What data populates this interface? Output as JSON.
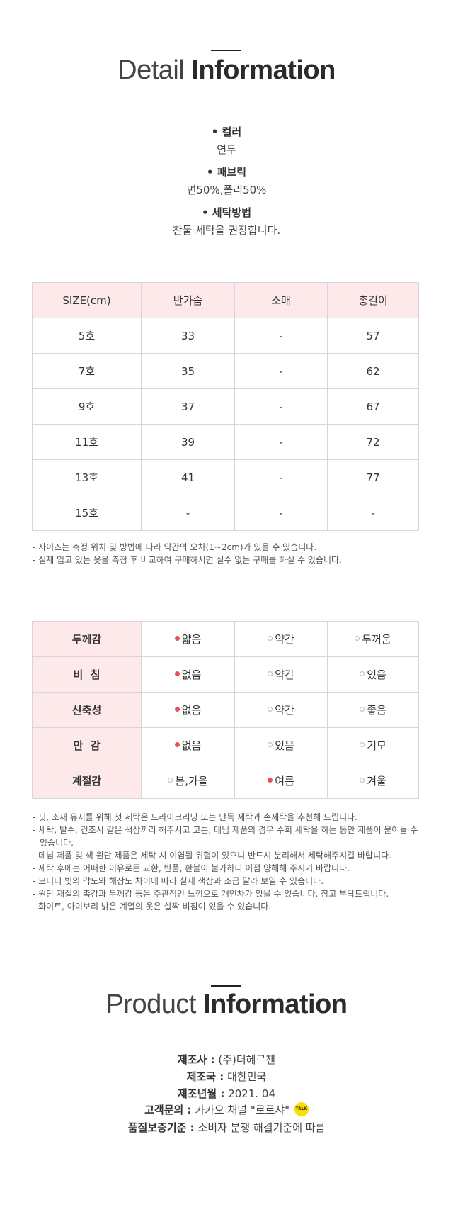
{
  "detail": {
    "title_light": "Detail",
    "title_bold": "Information",
    "items": [
      {
        "label": "• 컬러",
        "value": "연두"
      },
      {
        "label": "• 패브릭",
        "value": "면50%,폴리50%"
      },
      {
        "label": "• 세탁방법",
        "value": "찬물 세탁을 권장합니다."
      }
    ]
  },
  "size_table": {
    "headers": [
      "SIZE(cm)",
      "반가슴",
      "소매",
      "총길이"
    ],
    "rows": [
      [
        "5호",
        "33",
        "-",
        "57"
      ],
      [
        "7호",
        "35",
        "-",
        "62"
      ],
      [
        "9호",
        "37",
        "-",
        "67"
      ],
      [
        "11호",
        "39",
        "-",
        "72"
      ],
      [
        "13호",
        "41",
        "-",
        "77"
      ],
      [
        "15호",
        "-",
        "-",
        "-"
      ]
    ],
    "notes": [
      "- 사이즈는 측정 위치 및 방법에 따라 약간의 오차(1~2cm)가 있을 수 있습니다.",
      "- 실제 입고 있는 옷을 측정 후 비교하여 구매하시면 실수 없는 구매를 하실 수 있습니다."
    ]
  },
  "fabric_table": {
    "rows": [
      {
        "label": "두께감",
        "options": [
          {
            "text": "얇음",
            "selected": true
          },
          {
            "text": "약간",
            "selected": false
          },
          {
            "text": "두꺼움",
            "selected": false
          }
        ]
      },
      {
        "label": "비  침",
        "options": [
          {
            "text": "없음",
            "selected": true
          },
          {
            "text": "약간",
            "selected": false
          },
          {
            "text": "있음",
            "selected": false
          }
        ]
      },
      {
        "label": "신축성",
        "options": [
          {
            "text": "없음",
            "selected": true
          },
          {
            "text": "약간",
            "selected": false
          },
          {
            "text": "좋음",
            "selected": false
          }
        ]
      },
      {
        "label": "안  감",
        "options": [
          {
            "text": "없음",
            "selected": true
          },
          {
            "text": "있음",
            "selected": false
          },
          {
            "text": "기모",
            "selected": false
          }
        ]
      },
      {
        "label": "계절감",
        "options": [
          {
            "text": "봄,가을",
            "selected": false
          },
          {
            "text": "여름",
            "selected": true
          },
          {
            "text": "겨울",
            "selected": false
          }
        ]
      }
    ],
    "notes": [
      "- 핏, 소재 유지를 위해 첫 세탁은 드라이크리닝 또는 단독 세탁과 손세탁을 추천해 드립니다.",
      "- 세탁, 탈수, 건조시 같은 색상끼리 해주시고 코튼, 데님 제품의 경우 수회 세탁을 하는 동안 제품이 묻어들 수 있습니다.",
      "- 데님 제품 및 색 원단 제품은 세탁 시 이염될 위험이 있으니 반드시 분리해서 세탁해주시길 바랍니다.",
      "- 세탁 후에는 어떠한 이유로든 교환, 반품, 환불이 불가하니 이점 양해해 주시기 바랍니다.",
      "- 모니터 빛의 각도와 해상도 차이에 따라 실제 색상과 조금 달라 보일 수 있습니다.",
      "- 원단 재질의 촉감과 두께감 등은 주관적인 느낌으로 개인차가 있을 수 있습니다. 참고 부탁드립니다.",
      "- 화이트, 아이보리 밝은 계열의 옷은 살짝 비침이 있을 수 있습니다."
    ]
  },
  "product": {
    "title_light": "Product",
    "title_bold": "Information",
    "rows": [
      {
        "key": "제조사 :",
        "value": "(주)더헤르첸"
      },
      {
        "key": "제조국 :",
        "value": "대한민국"
      },
      {
        "key": "제조년월 :",
        "value": "2021. 04"
      },
      {
        "key": "고객문의 :",
        "value": "카카오 채널 \"로로샤\""
      },
      {
        "key": "품질보증기준 :",
        "value": "소비자 분쟁 해결기준에 따름"
      }
    ],
    "kakao_badge": "TALK",
    "kakao_icon": "kakao-talk-icon"
  },
  "colors": {
    "accent": "#e8505b",
    "header_bg": "#fde9e9",
    "border": "#d6d6d6",
    "kakao": "#f9e000"
  }
}
